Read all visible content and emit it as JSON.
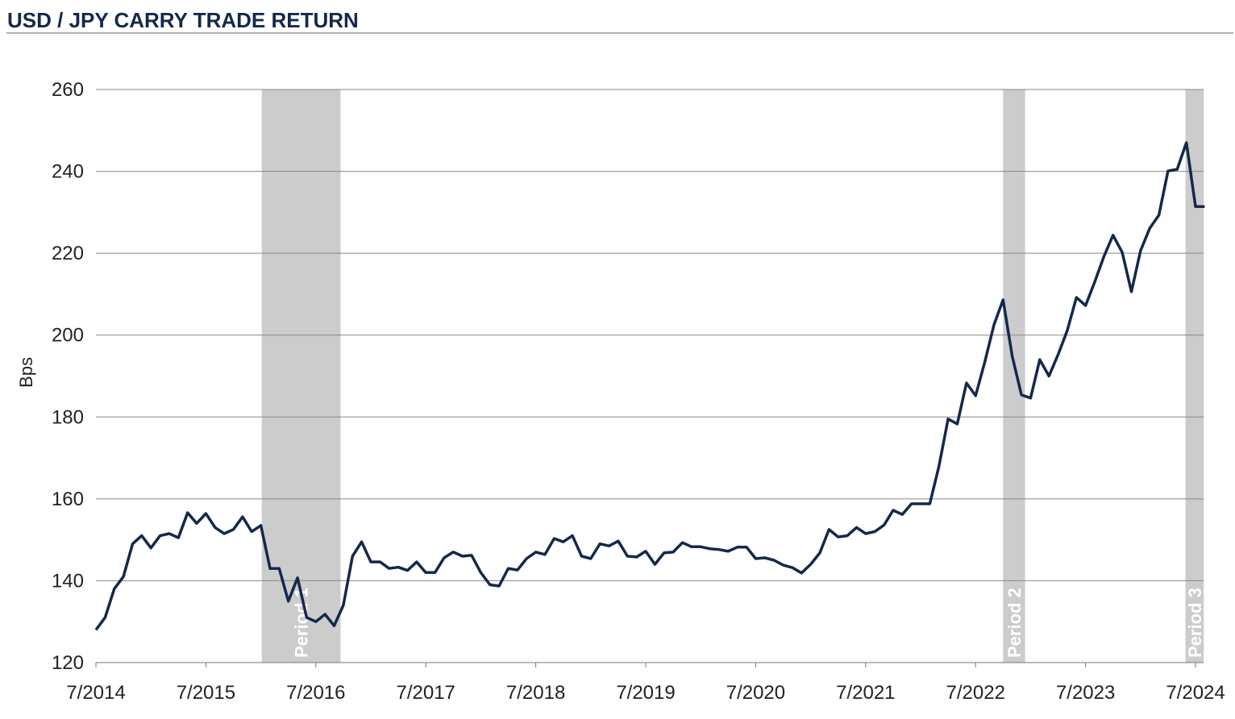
{
  "chart_data": {
    "type": "line",
    "title": "USD / JPY CARRY TRADE RETURN",
    "y_label": "Bps",
    "categories": [
      "7/2014",
      null,
      null,
      null,
      null,
      null,
      null,
      null,
      null,
      null,
      null,
      null,
      "7/2015",
      null,
      null,
      null,
      null,
      null,
      null,
      null,
      null,
      null,
      null,
      null,
      "7/2016",
      null,
      null,
      null,
      null,
      null,
      null,
      null,
      null,
      null,
      null,
      null,
      "7/2017",
      null,
      null,
      null,
      null,
      null,
      null,
      null,
      null,
      null,
      null,
      null,
      "7/2018",
      null,
      null,
      null,
      null,
      null,
      null,
      null,
      null,
      null,
      null,
      null,
      "7/2019",
      null,
      null,
      null,
      null,
      null,
      null,
      null,
      null,
      null,
      null,
      null,
      "7/2020",
      null,
      null,
      null,
      null,
      null,
      null,
      null,
      null,
      null,
      null,
      null,
      "7/2021",
      null,
      null,
      null,
      null,
      null,
      null,
      null,
      null,
      null,
      null,
      null,
      "7/2022",
      null,
      null,
      null,
      null,
      null,
      null,
      null,
      null,
      null,
      null,
      null,
      "7/2023",
      null,
      null,
      null,
      null,
      null,
      null,
      null,
      null,
      null,
      null,
      null,
      "7/2024",
      null
    ],
    "series": [
      {
        "name": "USD / JPY carry trade return",
        "color": "#13294b",
        "values": [
          128,
          131,
          138,
          141,
          149,
          151,
          148,
          151,
          151.5,
          150.5,
          156.6,
          154,
          156.4,
          153,
          151.5,
          152.5,
          155.6,
          152,
          153.5,
          143,
          143,
          135,
          140.7,
          131,
          130,
          131.8,
          129,
          134,
          146,
          149.5,
          144.6,
          144.6,
          143,
          143.3,
          142.5,
          144.6,
          142,
          142,
          145.6,
          147,
          146,
          146.2,
          142,
          139,
          138.7,
          143,
          142.6,
          145.4,
          147,
          146.4,
          150.3,
          149.5,
          151,
          146,
          145.4,
          149,
          148.5,
          149.7,
          146,
          145.8,
          147.2,
          144,
          146.8,
          147,
          149.3,
          148.3,
          148.3,
          147.8,
          147.6,
          147.2,
          148.2,
          148.2,
          145.4,
          145.6,
          145,
          143.8,
          143.2,
          141.9,
          144,
          146.8,
          152.5,
          150.7,
          151,
          153,
          151.5,
          152,
          153.6,
          157.2,
          156.2,
          158.8,
          158.8,
          158.8,
          168,
          179.5,
          178.3,
          188.3,
          185.2,
          193.4,
          202.5,
          208.6,
          194.8,
          185.4,
          184.6,
          194,
          190,
          195.2,
          201.1,
          209.2,
          207.2,
          213,
          219.2,
          224.4,
          220.2,
          210.6,
          220.6,
          226.1,
          229.3,
          240.1,
          240.5,
          247,
          231.4,
          231.4
        ]
      }
    ],
    "periods": [
      {
        "label": "Period 1",
        "start": 18.1,
        "end": 26.7,
        "color": "#cccccc"
      },
      {
        "label": "Period 2",
        "start": 99.0,
        "end": 101.4,
        "color": "#cccccc"
      },
      {
        "label": "Period 3",
        "start": 118.9,
        "end": 120.9,
        "color": "#cccccc"
      }
    ],
    "ylim": [
      120,
      260
    ],
    "yticks": [
      120,
      140,
      160,
      180,
      200,
      220,
      240,
      260
    ],
    "grid": true
  }
}
